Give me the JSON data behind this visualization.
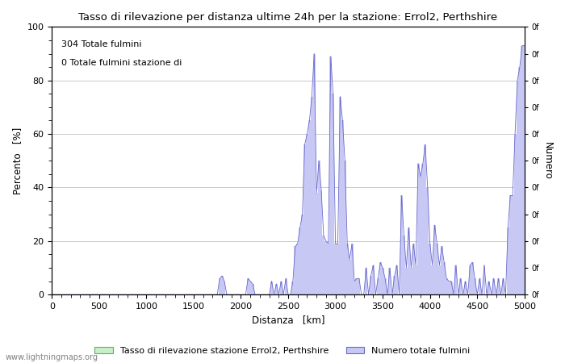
{
  "title": "Tasso di rilevazione per distanza ultime 24h per la stazione: Errol2, Perthshire",
  "xlabel": "Distanza   [km]",
  "ylabel_left": "Percento   [%]",
  "ylabel_right": "Numero",
  "xlim": [
    0,
    5000
  ],
  "ylim_left": [
    0,
    100
  ],
  "annotation_line1": "304 Totale fulmini",
  "annotation_line2": "0 Totale fulmini stazione di",
  "legend_green": "Tasso di rilevazione stazione Errol2, Perthshire",
  "legend_blue": "Numero totale fulmini",
  "watermark": "www.lightningmaps.org",
  "green_fill_color": "#c8f0c8",
  "blue_fill_color": "#c8c8f4",
  "blue_line_color": "#6868cc",
  "green_line_color": "#68a868",
  "background_color": "#ffffff",
  "grid_color": "#c0c0c0",
  "figsize": [
    7.0,
    4.5
  ],
  "dpi": 100
}
